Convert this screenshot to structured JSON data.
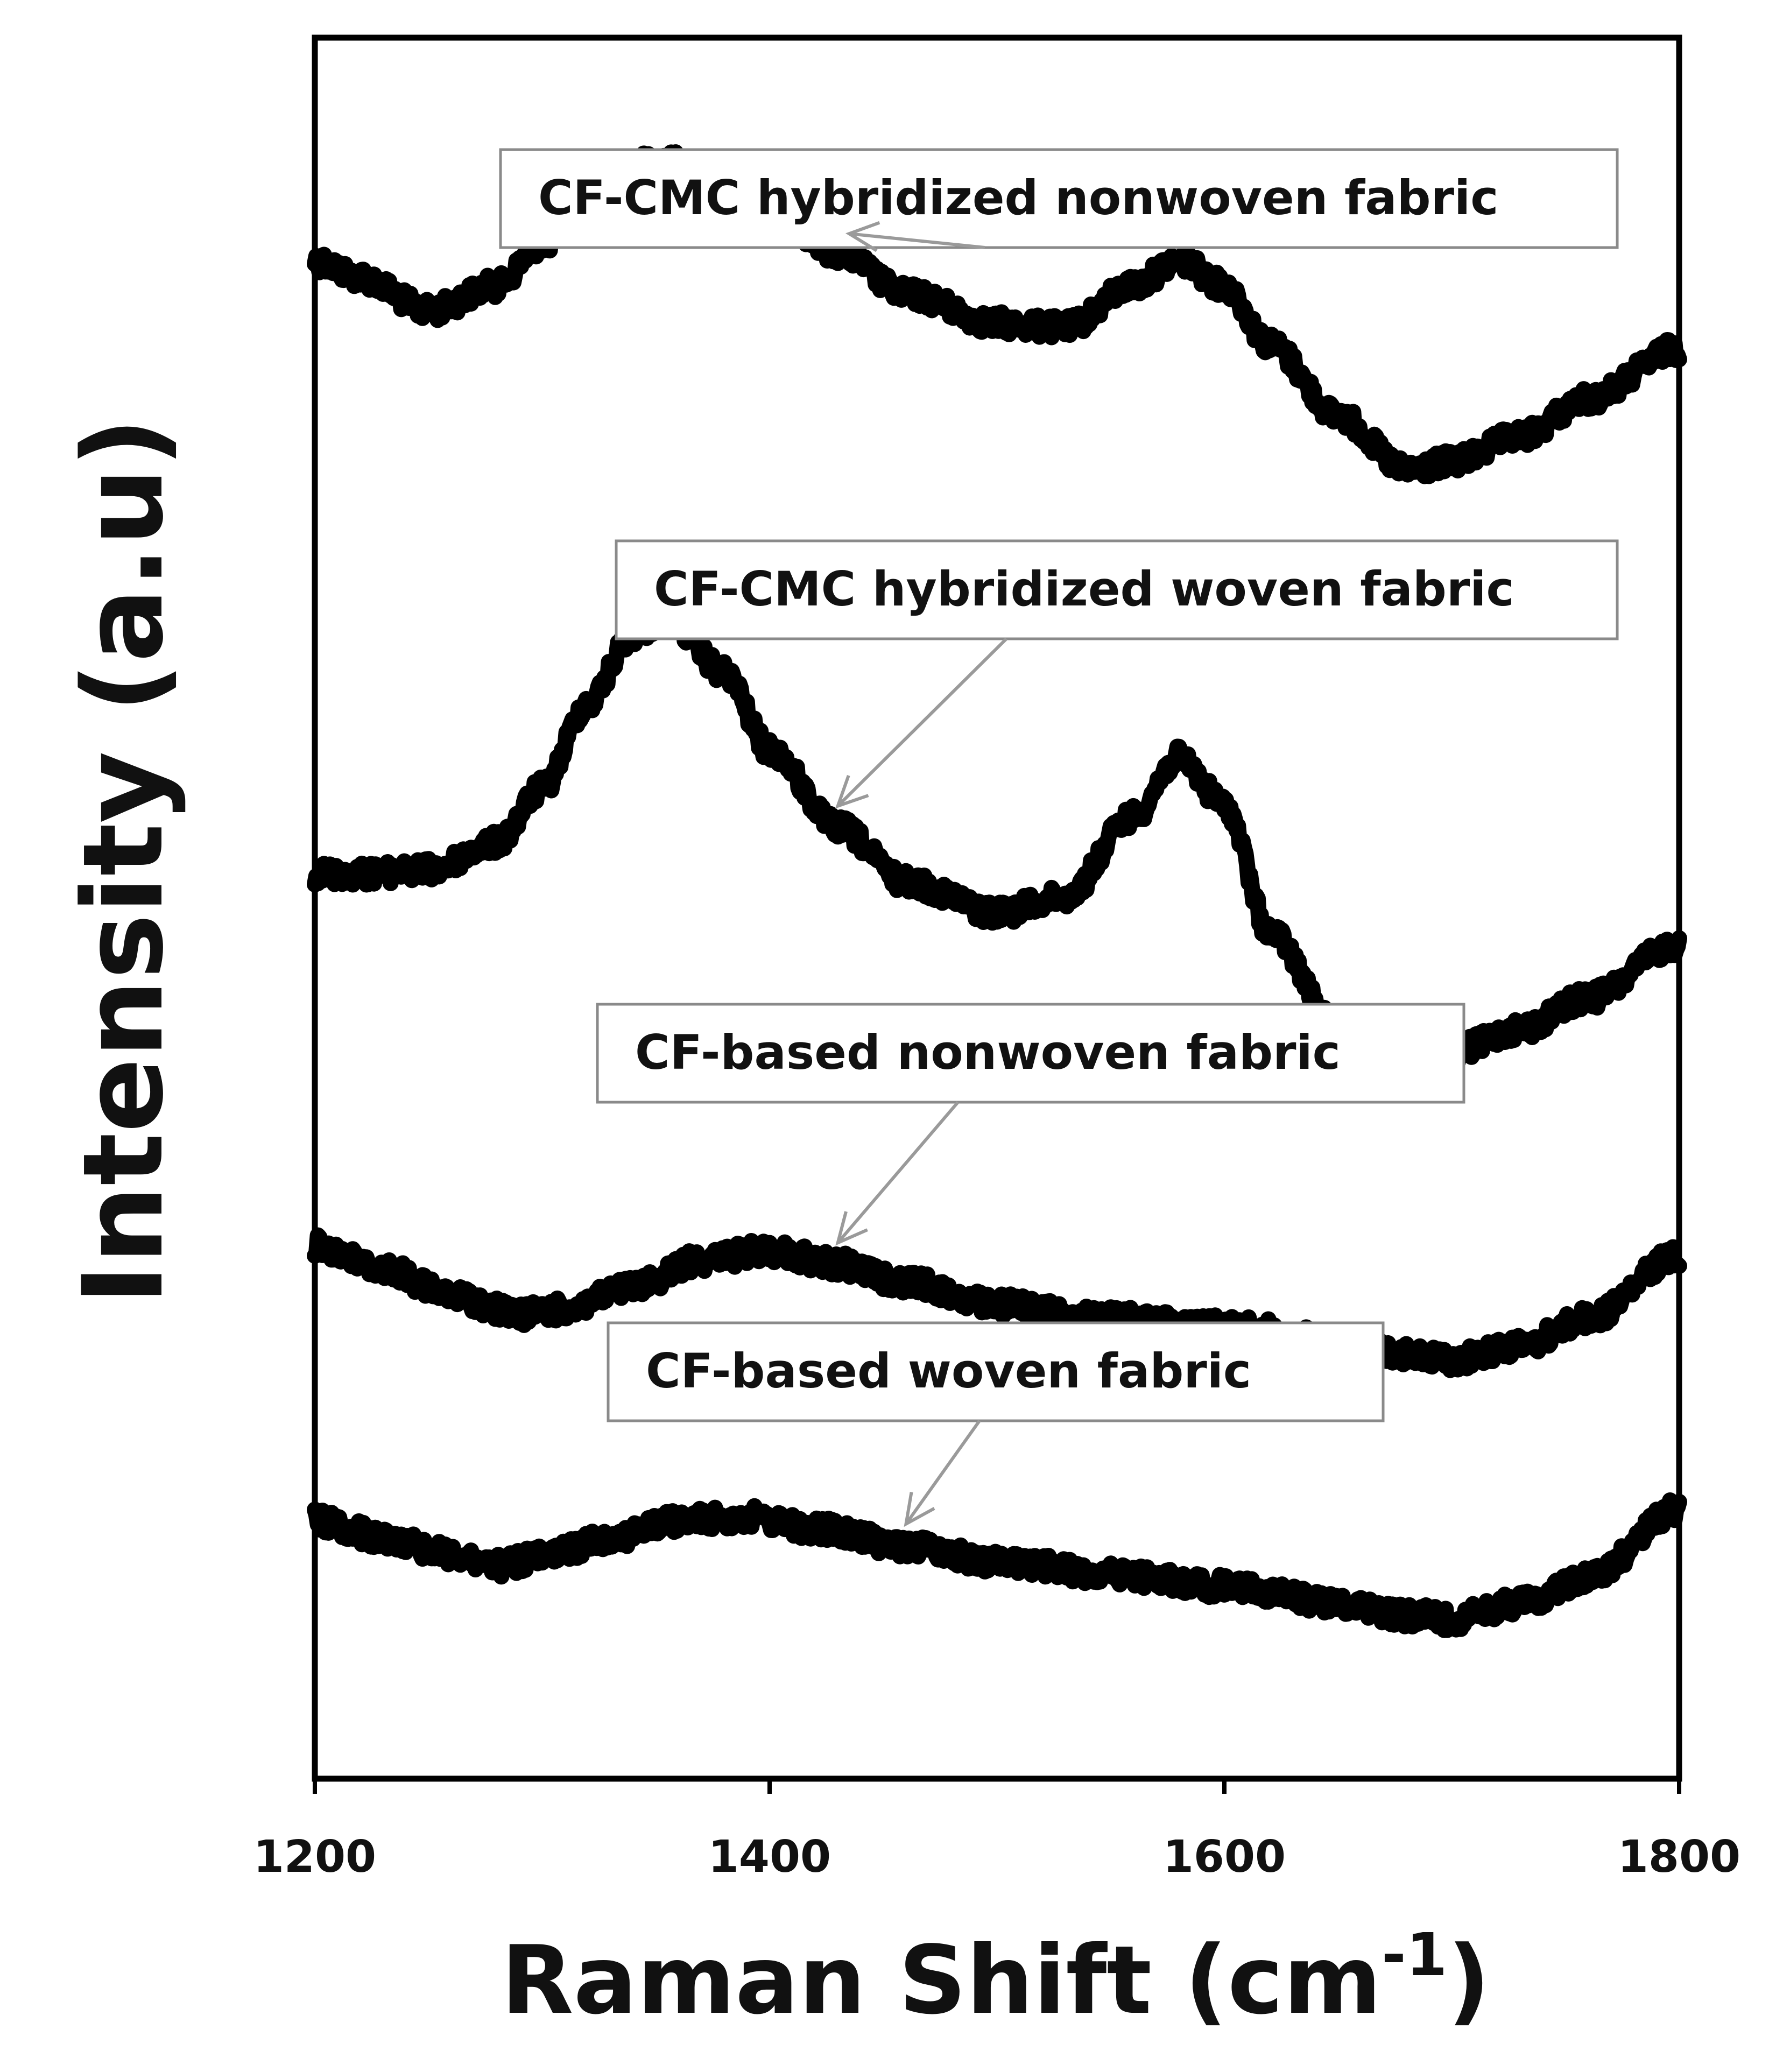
{
  "chart_data": {
    "type": "line",
    "title": "",
    "xlabel": "Raman Shift (cm",
    "xlabel_superscript": "-1",
    "xlabel_close": ")",
    "ylabel": "Intensity (a.u)",
    "xlim": [
      1200,
      1800
    ],
    "x_ticks": [
      "1200",
      "1400",
      "1600",
      "1800"
    ],
    "y_ticks_shown": false,
    "grid": false,
    "legend": "callout labels with arrows",
    "line_color": "#000000",
    "series": [
      {
        "name": "CF-CMC hybridized nonwoven fabric",
        "offset_rank": 1,
        "arrow_at_x": 1435,
        "x": [
          1200,
          1220,
          1250,
          1280,
          1300,
          1330,
          1350,
          1370,
          1400,
          1430,
          1460,
          1500,
          1530,
          1560,
          1580,
          1600,
          1620,
          1650,
          1680,
          1700,
          1730,
          1760,
          1800
        ],
        "values": [
          0.7,
          0.66,
          0.58,
          0.64,
          0.74,
          0.88,
          0.94,
          0.92,
          0.82,
          0.72,
          0.62,
          0.55,
          0.54,
          0.64,
          0.7,
          0.64,
          0.5,
          0.33,
          0.2,
          0.22,
          0.28,
          0.37,
          0.49
        ]
      },
      {
        "name": "CF-CMC hybridized woven fabric",
        "offset_rank": 2,
        "arrow_at_x": 1430,
        "x": [
          1200,
          1220,
          1250,
          1280,
          1300,
          1320,
          1340,
          1355,
          1380,
          1400,
          1430,
          1460,
          1500,
          1530,
          1560,
          1580,
          1600,
          1620,
          1650,
          1680,
          1700,
          1730,
          1760,
          1800
        ],
        "values": [
          0.3,
          0.3,
          0.31,
          0.38,
          0.52,
          0.74,
          0.92,
          0.96,
          0.82,
          0.62,
          0.42,
          0.28,
          0.2,
          0.24,
          0.45,
          0.6,
          0.48,
          0.15,
          -0.1,
          -0.18,
          -0.16,
          -0.1,
          -0.02,
          0.12
        ]
      },
      {
        "name": "CF-based nonwoven fabric",
        "offset_rank": 3,
        "arrow_at_x": 1430,
        "x": [
          1200,
          1230,
          1260,
          1290,
          1310,
          1340,
          1370,
          1400,
          1430,
          1460,
          1500,
          1550,
          1600,
          1650,
          1680,
          1700,
          1730,
          1760,
          1800
        ],
        "values": [
          0.32,
          0.22,
          0.1,
          0.02,
          0.04,
          0.14,
          0.26,
          0.3,
          0.24,
          0.16,
          0.06,
          0.0,
          -0.03,
          -0.1,
          -0.16,
          -0.18,
          -0.12,
          0.0,
          0.28
        ]
      },
      {
        "name": "CF-based woven fabric",
        "offset_rank": 4,
        "arrow_at_x": 1460,
        "x": [
          1200,
          1230,
          1260,
          1280,
          1300,
          1330,
          1360,
          1390,
          1420,
          1460,
          1500,
          1550,
          1600,
          1650,
          1680,
          1700,
          1730,
          1760,
          1800
        ],
        "values": [
          0.3,
          0.22,
          0.14,
          0.08,
          0.12,
          0.22,
          0.3,
          0.32,
          0.26,
          0.18,
          0.1,
          0.04,
          -0.02,
          -0.1,
          -0.16,
          -0.18,
          -0.1,
          0.02,
          0.36
        ]
      }
    ]
  }
}
